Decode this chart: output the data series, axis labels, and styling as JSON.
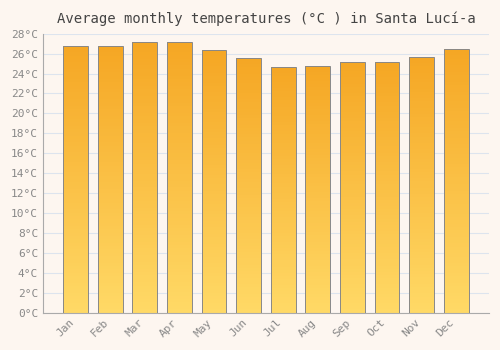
{
  "title": "Average monthly temperatures (°C ) in Santa Lucí-a",
  "months": [
    "Jan",
    "Feb",
    "Mar",
    "Apr",
    "May",
    "Jun",
    "Jul",
    "Aug",
    "Sep",
    "Oct",
    "Nov",
    "Dec"
  ],
  "values": [
    26.8,
    26.8,
    27.2,
    27.2,
    26.4,
    25.6,
    24.7,
    24.8,
    25.2,
    25.2,
    25.7,
    26.5
  ],
  "bar_color_top": "#F5A623",
  "bar_color_bottom": "#FFD966",
  "bar_edge_color": "#888888",
  "background_color": "#fdf6f0",
  "grid_color": "#dde4ee",
  "tick_label_color": "#888888",
  "title_color": "#444444",
  "ylim": [
    0,
    28
  ],
  "ytick_step": 2,
  "title_fontsize": 10,
  "tick_fontsize": 8
}
